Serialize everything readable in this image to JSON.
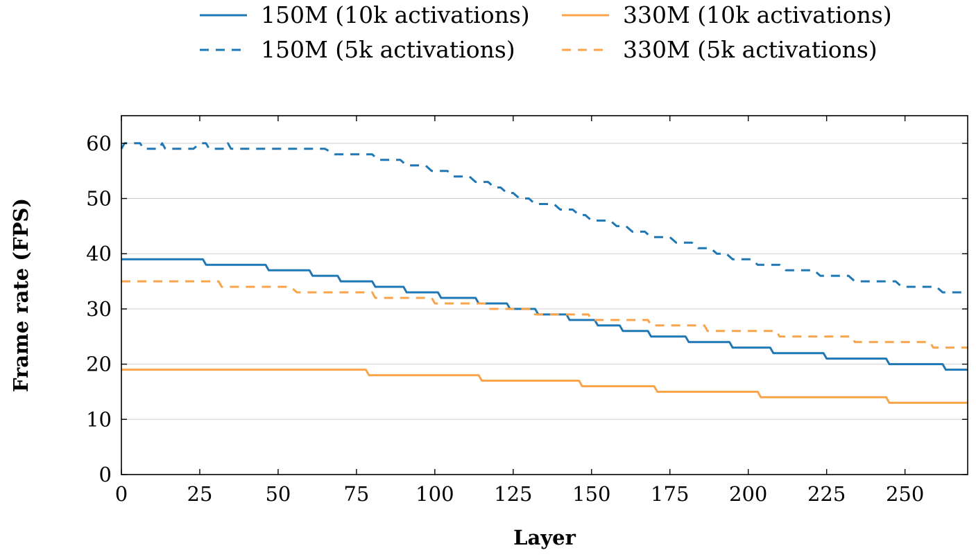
{
  "chart_data": {
    "type": "line",
    "title": "",
    "xlabel": "Layer",
    "ylabel": "Frame rate (FPS)",
    "xlim": [
      0,
      270
    ],
    "ylim": [
      0,
      65
    ],
    "xticks": [
      0,
      25,
      50,
      75,
      100,
      125,
      150,
      175,
      200,
      225,
      250
    ],
    "yticks": [
      0,
      10,
      20,
      30,
      40,
      50,
      60
    ],
    "grid": "horizontal major gridlines at y ticks",
    "legend_position": "top",
    "series": [
      {
        "name": "150M (10k activations)",
        "color": "#1f77b4",
        "dash": "solid",
        "points": [
          [
            0,
            39
          ],
          [
            26,
            39
          ],
          [
            27,
            38
          ],
          [
            46,
            38
          ],
          [
            47,
            37
          ],
          [
            60,
            37
          ],
          [
            61,
            36
          ],
          [
            69,
            36
          ],
          [
            70,
            35
          ],
          [
            80,
            35
          ],
          [
            81,
            34
          ],
          [
            90,
            34
          ],
          [
            91,
            33
          ],
          [
            101,
            33
          ],
          [
            102,
            32
          ],
          [
            113,
            32
          ],
          [
            114,
            31
          ],
          [
            123,
            31
          ],
          [
            124,
            30
          ],
          [
            132,
            30
          ],
          [
            133,
            29
          ],
          [
            142,
            29
          ],
          [
            143,
            28
          ],
          [
            151,
            28
          ],
          [
            152,
            27
          ],
          [
            159,
            27
          ],
          [
            160,
            26
          ],
          [
            168,
            26
          ],
          [
            169,
            25
          ],
          [
            180,
            25
          ],
          [
            181,
            24
          ],
          [
            194,
            24
          ],
          [
            195,
            23
          ],
          [
            207,
            23
          ],
          [
            208,
            22
          ],
          [
            224,
            22
          ],
          [
            225,
            21
          ],
          [
            244,
            21
          ],
          [
            245,
            20
          ],
          [
            262,
            20
          ],
          [
            263,
            19
          ],
          [
            270,
            19
          ]
        ]
      },
      {
        "name": "150M (5k activations)",
        "color": "#1f77b4",
        "dash": "dashed",
        "points": [
          [
            0,
            59
          ],
          [
            1,
            60
          ],
          [
            6,
            60
          ],
          [
            7,
            59
          ],
          [
            12,
            59
          ],
          [
            13,
            60
          ],
          [
            14,
            59
          ],
          [
            22,
            59
          ],
          [
            23,
            59
          ],
          [
            25,
            60
          ],
          [
            27,
            60
          ],
          [
            28,
            59
          ],
          [
            33,
            59
          ],
          [
            34,
            60
          ],
          [
            35,
            59
          ],
          [
            65,
            59
          ],
          [
            68,
            58
          ],
          [
            80,
            58
          ],
          [
            82,
            57
          ],
          [
            89,
            57
          ],
          [
            91,
            56
          ],
          [
            97,
            56
          ],
          [
            99,
            55
          ],
          [
            104,
            55
          ],
          [
            106,
            54
          ],
          [
            111,
            54
          ],
          [
            113,
            53
          ],
          [
            117,
            53
          ],
          [
            119,
            52
          ],
          [
            121,
            52
          ],
          [
            123,
            51
          ],
          [
            125,
            51
          ],
          [
            127,
            50
          ],
          [
            130,
            50
          ],
          [
            132,
            49
          ],
          [
            136,
            49
          ],
          [
            138,
            49
          ],
          [
            140,
            48
          ],
          [
            144,
            48
          ],
          [
            146,
            47
          ],
          [
            148,
            47
          ],
          [
            150,
            46
          ],
          [
            156,
            46
          ],
          [
            158,
            45
          ],
          [
            161,
            45
          ],
          [
            163,
            44
          ],
          [
            167,
            44
          ],
          [
            169,
            43
          ],
          [
            175,
            43
          ],
          [
            177,
            42
          ],
          [
            182,
            42
          ],
          [
            184,
            41
          ],
          [
            188,
            41
          ],
          [
            190,
            40
          ],
          [
            193,
            40
          ],
          [
            195,
            39
          ],
          [
            201,
            39
          ],
          [
            203,
            38
          ],
          [
            210,
            38
          ],
          [
            212,
            37
          ],
          [
            221,
            37
          ],
          [
            223,
            36
          ],
          [
            232,
            36
          ],
          [
            234,
            35
          ],
          [
            247,
            35
          ],
          [
            249,
            34
          ],
          [
            260,
            34
          ],
          [
            262,
            33
          ],
          [
            270,
            33
          ]
        ]
      },
      {
        "name": "330M (10k activations)",
        "color": "#f9a44a",
        "dash": "solid",
        "points": [
          [
            0,
            19
          ],
          [
            78,
            19
          ],
          [
            79,
            18
          ],
          [
            114,
            18
          ],
          [
            115,
            17
          ],
          [
            146,
            17
          ],
          [
            147,
            16
          ],
          [
            170,
            16
          ],
          [
            171,
            15
          ],
          [
            203,
            15
          ],
          [
            204,
            14
          ],
          [
            244,
            14
          ],
          [
            245,
            13
          ],
          [
            270,
            13
          ]
        ]
      },
      {
        "name": "330M (5k activations)",
        "color": "#f9a44a",
        "dash": "dashed",
        "points": [
          [
            0,
            35
          ],
          [
            31,
            35
          ],
          [
            32,
            34
          ],
          [
            54,
            34
          ],
          [
            56,
            33
          ],
          [
            80,
            33
          ],
          [
            81,
            32
          ],
          [
            99,
            32
          ],
          [
            100,
            31
          ],
          [
            116,
            31
          ],
          [
            117,
            30
          ],
          [
            131,
            30
          ],
          [
            132,
            29
          ],
          [
            149,
            29
          ],
          [
            150,
            28
          ],
          [
            168,
            28
          ],
          [
            169,
            27
          ],
          [
            186,
            27
          ],
          [
            187,
            26
          ],
          [
            209,
            26
          ],
          [
            210,
            25
          ],
          [
            233,
            25
          ],
          [
            234,
            24
          ],
          [
            258,
            24
          ],
          [
            259,
            23
          ],
          [
            270,
            23
          ]
        ]
      }
    ]
  }
}
